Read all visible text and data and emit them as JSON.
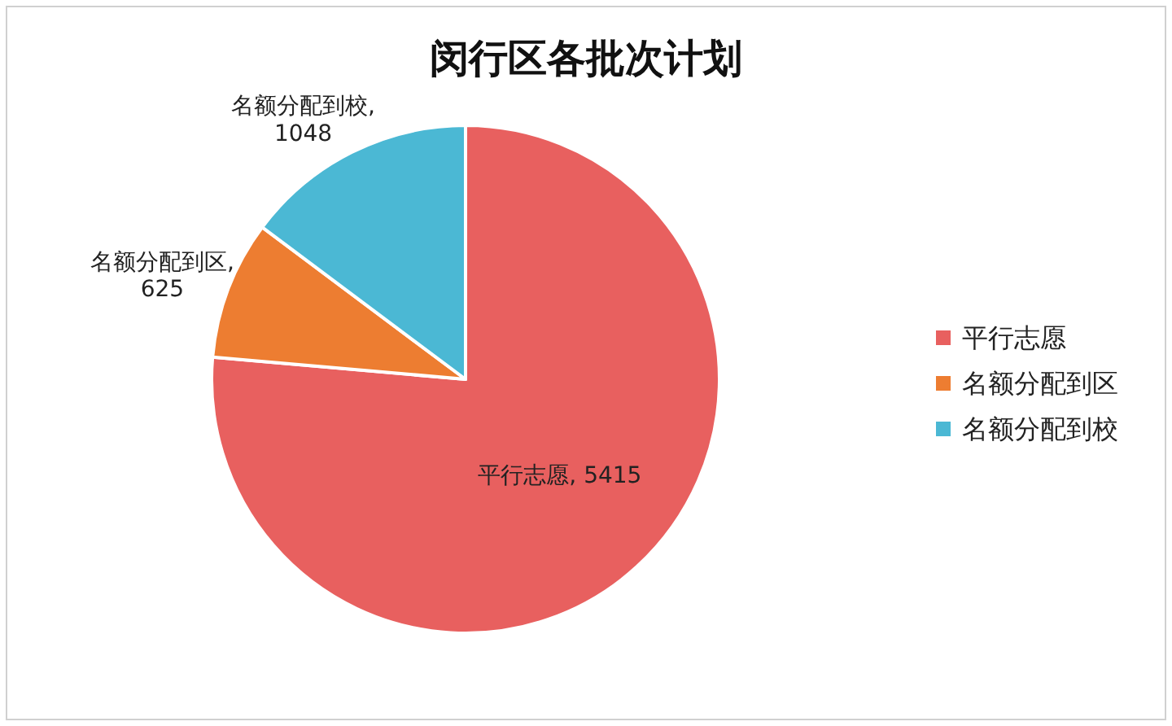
{
  "chart_data": {
    "type": "pie",
    "title": "闵行区各批次计划",
    "categories": [
      "平行志愿",
      "名额分配到区",
      "名额分配到校"
    ],
    "values": [
      5415,
      625,
      1048
    ],
    "value_labels": [
      "平行志愿, 5415",
      "名额分配到区, 625",
      "名额分配到校, 1048"
    ],
    "colors": [
      "#e8605f",
      "#ed7d31",
      "#4bb8d4"
    ],
    "legend": "right"
  }
}
